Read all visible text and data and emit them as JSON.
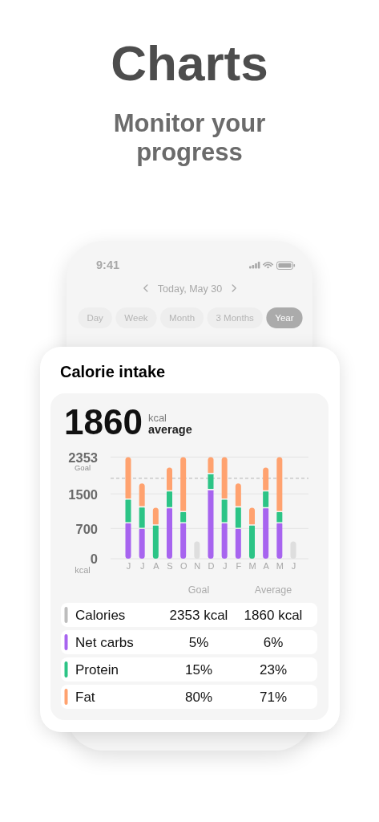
{
  "chart_data": [
    {
      "type": "other",
      "title": "Charts",
      "subtitle": "Monitor your progress",
      "annotations": [
        "9:41",
        "Today, May 30",
        "Day",
        "Week",
        "Month",
        "3 Months",
        "Year"
      ]
    },
    {
      "type": "bar",
      "title": "Calorie intake",
      "annotations": [
        "1860",
        "kcal",
        "average",
        "Goal"
      ],
      "categories": [
        "J",
        "J",
        "A",
        "S",
        "O",
        "N",
        "D",
        "J",
        "F",
        "M",
        "A",
        "M",
        "J"
      ],
      "stacked": true,
      "series": [
        {
          "color": "#a764ef",
          "values": [
            830,
            700,
            null,
            1180,
            830,
            null,
            1600,
            830,
            700,
            null,
            1180,
            830,
            null
          ]
        },
        {
          "color": "#2cc486",
          "values": [
            550,
            500,
            780,
            390,
            260,
            null,
            370,
            550,
            500,
            780,
            390,
            260,
            null
          ]
        },
        {
          "color": "#ffa26f",
          "values": [
            970,
            540,
            400,
            540,
            1260,
            null,
            380,
            970,
            540,
            400,
            540,
            1260,
            null
          ]
        },
        {
          "color": "#dedede",
          "values": [
            null,
            null,
            null,
            null,
            null,
            400,
            null,
            null,
            null,
            null,
            null,
            null,
            400
          ]
        }
      ],
      "ylim": [
        0,
        2353
      ],
      "yticks": [
        0,
        700,
        1500,
        2353
      ],
      "ylabel": "kcal",
      "grid": "y",
      "ref_lines": [
        {
          "axis": "y",
          "value": 1860,
          "line_style": "dashed",
          "color": "#b3b3b3"
        }
      ]
    },
    {
      "type": "other",
      "categories": [
        "Calories",
        "Net carbs",
        "Protein",
        "Fat"
      ],
      "colors": [
        "#bdbdbd",
        "#a764ef",
        "#2cc486",
        "#ffa26f"
      ],
      "series": [
        {
          "name": "Goal",
          "values": [
            2353,
            5,
            15,
            80
          ],
          "value_labels": [
            "2353 kcal",
            "5%",
            "15%",
            "80%"
          ]
        },
        {
          "name": "Average",
          "values": [
            1860,
            6,
            23,
            71
          ],
          "value_labels": [
            "1860 kcal",
            "6%",
            "23%",
            "71%"
          ]
        }
      ]
    }
  ]
}
